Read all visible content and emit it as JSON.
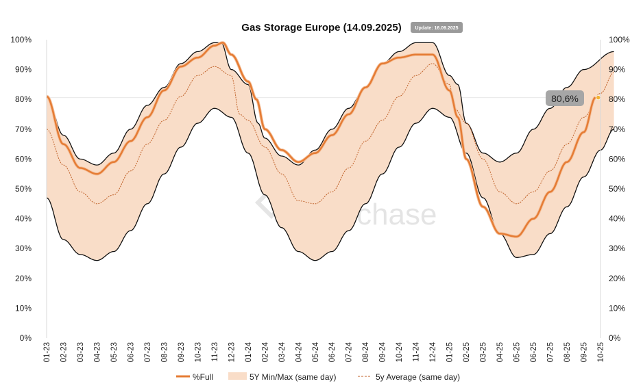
{
  "chart_data": {
    "type": "area",
    "title": "Gas Storage Europe (14.09.2025)",
    "update_badge": "Update: 16.09.2025",
    "watermark": "enerchase",
    "ylim": [
      0,
      100
    ],
    "y_ticks": [
      "0%",
      "10%",
      "20%",
      "30%",
      "40%",
      "50%",
      "60%",
      "70%",
      "80%",
      "90%",
      "100%"
    ],
    "x_ticks": [
      "01-23",
      "02-23",
      "03-23",
      "04-23",
      "05-23",
      "06-23",
      "07-23",
      "08-23",
      "09-23",
      "10-23",
      "11-23",
      "12-23",
      "01-24",
      "02-24",
      "03-24",
      "04-24",
      "05-24",
      "06-24",
      "07-24",
      "08-24",
      "09-24",
      "10-24",
      "11-24",
      "12-24",
      "01-25",
      "02-25",
      "03-25",
      "04-25",
      "05-25",
      "06-25",
      "07-25",
      "08-25",
      "09-25",
      "10-25"
    ],
    "last_value_label": "80,6%",
    "reference_line_value": 80.6,
    "colors": {
      "full": "#e57c34",
      "band": "#f9ddc8",
      "band_edge": "#111111",
      "average": "#c0622a",
      "dot": "#f2b233",
      "label_bg": "#a6a6a6"
    },
    "legend": [
      "%Full",
      "5Y Min/Max (same day)",
      "5y Average (same day)"
    ],
    "series": [
      {
        "name": "5Y Max",
        "months": [
          0,
          1,
          2,
          3,
          4,
          5,
          6,
          7,
          8,
          9,
          10,
          10.4,
          11,
          12,
          12.6,
          13,
          14,
          15,
          16,
          17,
          18,
          19,
          20,
          21,
          22,
          23,
          24,
          24.5,
          25,
          26,
          27,
          28,
          29,
          30,
          31,
          32,
          33.8
        ],
        "values": [
          81,
          68,
          60,
          58,
          62,
          70,
          78,
          84,
          92,
          96,
          99,
          99,
          90,
          85,
          72,
          67,
          61,
          58,
          63,
          70,
          77,
          84,
          92,
          96,
          99,
          99,
          88,
          85,
          72,
          62,
          59,
          62,
          70,
          77,
          84,
          90,
          96
        ]
      },
      {
        "name": "5Y Min",
        "months": [
          0,
          1,
          2,
          3,
          4,
          5,
          6,
          7,
          8,
          9,
          10,
          11,
          12,
          13,
          14,
          15,
          16,
          17,
          18,
          19,
          20,
          21,
          22,
          23,
          24,
          25,
          26,
          27,
          28,
          29,
          30,
          31,
          32,
          33,
          33.8
        ],
        "values": [
          47,
          33,
          28,
          26,
          29,
          36,
          45,
          55,
          64,
          72,
          77,
          74,
          62,
          48,
          37,
          29,
          26,
          29,
          36,
          45,
          55,
          64,
          72,
          77,
          74,
          62,
          47,
          35,
          27,
          28,
          35,
          44,
          54,
          63,
          70
        ]
      },
      {
        "name": "5y Average",
        "months": [
          0,
          1,
          2,
          3,
          4,
          5,
          6,
          7,
          8,
          9,
          10,
          11,
          11.5,
          12,
          13,
          14,
          15,
          16,
          17,
          18,
          19,
          20,
          21,
          22,
          23,
          24,
          24.3,
          25,
          26,
          27,
          28,
          29,
          30,
          31,
          32,
          33,
          33.8
        ],
        "values": [
          70,
          58,
          49,
          45,
          48,
          56,
          65,
          73,
          81,
          88,
          91,
          88,
          75,
          73,
          64,
          55,
          46,
          45,
          49,
          57,
          66,
          73,
          81,
          88,
          92,
          85,
          77,
          72,
          60,
          49,
          45,
          49,
          56,
          65,
          74,
          82,
          89
        ]
      },
      {
        "name": "%Full",
        "months": [
          0,
          1,
          2,
          3,
          4,
          5,
          6,
          7,
          8,
          9,
          10,
          10.5,
          11,
          12,
          12.5,
          13,
          14,
          15,
          16,
          17,
          18,
          19,
          20,
          21,
          22,
          23,
          24,
          24.5,
          25,
          26,
          27,
          28,
          29,
          30,
          31,
          32,
          32.7
        ],
        "values": [
          81,
          65,
          57,
          55,
          59,
          66,
          74,
          83,
          91,
          94,
          98,
          99,
          95,
          86,
          80,
          70,
          63,
          59,
          62,
          68,
          75,
          84,
          92,
          94,
          95,
          95,
          83,
          74,
          60,
          44,
          35,
          34,
          40,
          49,
          59,
          69,
          80.6
        ]
      }
    ]
  }
}
